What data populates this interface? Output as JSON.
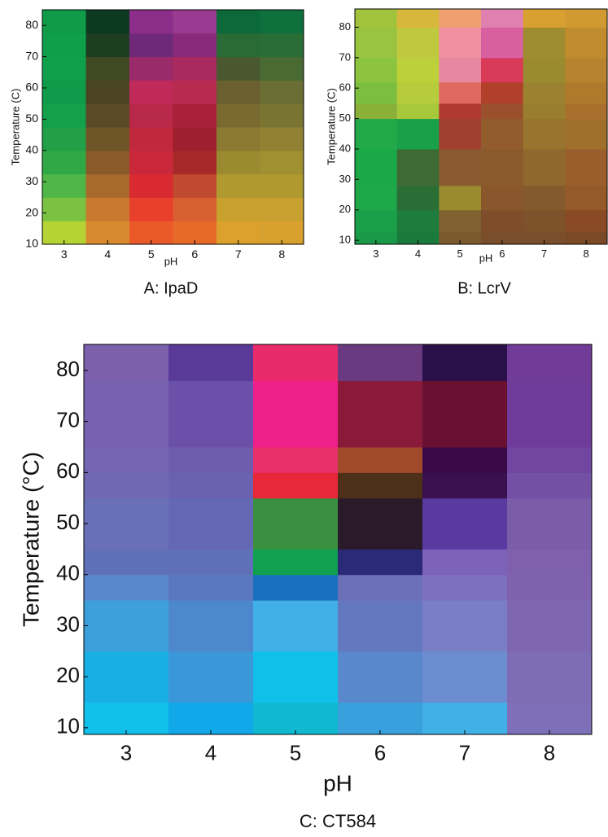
{
  "chart_data": [
    {
      "type": "heatmap",
      "title": "A: IpaD",
      "x_label": "pH",
      "y_label": "Temperature (C)",
      "categories": [
        3,
        4,
        5,
        6,
        7,
        8
      ],
      "ylim": [
        10,
        85
      ],
      "yticks": [
        10,
        20,
        30,
        40,
        50,
        60,
        70,
        80
      ],
      "y_edges": [
        10,
        17.5,
        25,
        32.5,
        40,
        47.5,
        55,
        62.5,
        70,
        77.5,
        85
      ],
      "cells": [
        [
          "#b5d334",
          "#7cc242",
          "#4fb748",
          "#2fa845",
          "#22a048",
          "#12a04a",
          "#0e9b4a",
          "#10a04b",
          "#0f9e4a",
          "#0f9b48"
        ],
        [
          "#d88a2e",
          "#c87a30",
          "#a86a2a",
          "#8a5a28",
          "#6e5528",
          "#5a4a26",
          "#4a4422",
          "#3f4a22",
          "#1e3e22",
          "#0c3a20"
        ],
        [
          "#ea5a28",
          "#e8402a",
          "#d82a30",
          "#c8283a",
          "#c0283e",
          "#b82848",
          "#c02a5a",
          "#9a2a6a",
          "#6e2a78",
          "#8a2e8a"
        ],
        [
          "#e86a28",
          "#d86030",
          "#c04a30",
          "#a8282a",
          "#9e2030",
          "#a8203a",
          "#b82a50",
          "#a82a5e",
          "#8a2a7a",
          "#9a3a90"
        ],
        [
          "#dca02c",
          "#c8a02e",
          "#b09a30",
          "#9a8a30",
          "#8a7a32",
          "#7a6a30",
          "#6a6030",
          "#4a5830",
          "#2a6a34",
          "#0c6a3a"
        ],
        [
          "#d8a02e",
          "#c8a030",
          "#b09a30",
          "#a09032",
          "#908232",
          "#7a7432",
          "#6a6e34",
          "#4a6a34",
          "#2a6e36",
          "#0e703c"
        ]
      ]
    },
    {
      "type": "heatmap",
      "title": "B: LcrV",
      "x_label": "pH",
      "y_label": "Temperature (C)",
      "categories": [
        3,
        4,
        5,
        6,
        7,
        8
      ],
      "ylim": [
        8.7,
        86
      ],
      "yticks": [
        10,
        20,
        30,
        40,
        50,
        60,
        70,
        80
      ],
      "y_edges": [
        8.7,
        13,
        20,
        28,
        40,
        50,
        55,
        62,
        70,
        80,
        86
      ],
      "cells": [
        [
          "#1a9a48",
          "#1aa048",
          "#1ea84a",
          "#1aa848",
          "#22aa48",
          "#8ab03a",
          "#7cbe40",
          "#8cc440",
          "#98c440",
          "#a2c43c"
        ],
        [
          "#1a7a3c",
          "#1e7c3c",
          "#2a6e36",
          "#3e6a34",
          "#1aa048",
          "#a8c83c",
          "#b6cc3c",
          "#bcd03a",
          "#c0c840",
          "#d8b83c"
        ],
        [
          "#7a5a2e",
          "#806230",
          "#9a8a30",
          "#8a5a2e",
          "#a0402e",
          "#b03a30",
          "#e06a60",
          "#e888a0",
          "#f090a0",
          "#f0a070"
        ],
        [
          "#7a4e2a",
          "#7e4e2a",
          "#8a562c",
          "#8a5a2c",
          "#925c2c",
          "#9a502c",
          "#b0402a",
          "#d83a58",
          "#d860a0",
          "#e080b0"
        ],
        [
          "#7a4e2a",
          "#7e522a",
          "#845a2c",
          "#8e682e",
          "#98742e",
          "#9a7e30",
          "#9a8230",
          "#9a8a30",
          "#a08c30",
          "#d8a030"
        ],
        [
          "#7a4a26",
          "#8a4a26",
          "#945a2a",
          "#9a5e2c",
          "#9e702c",
          "#a8702c",
          "#b07a2c",
          "#b6842e",
          "#c08c2e",
          "#d09a30"
        ]
      ]
    },
    {
      "type": "heatmap",
      "title": "C: CT584",
      "x_label": "pH",
      "y_label": "Temperature (°C)",
      "categories": [
        3,
        4,
        5,
        6,
        7,
        8
      ],
      "ylim": [
        8.7,
        85.1
      ],
      "yticks": [
        10,
        20,
        30,
        40,
        50,
        60,
        70,
        80
      ],
      "y_edges": [
        8.7,
        15,
        25,
        35,
        40,
        45,
        55,
        60,
        65,
        78,
        85.1
      ],
      "cells": [
        [
          "#10c0e8",
          "#18b0e4",
          "#3ea0da",
          "#5a88cc",
          "#6070b8",
          "#6a70b8",
          "#7068b0",
          "#7466b2",
          "#7862b0",
          "#7c60ac"
        ],
        [
          "#10a8e8",
          "#3a98d8",
          "#4e88cc",
          "#5a78c0",
          "#6070b8",
          "#6468b4",
          "#6a62b0",
          "#6e5cae",
          "#6a50a8",
          "#5a3a98"
        ],
        [
          "#10b8d0",
          "#10c0ea",
          "#40b0e6",
          "#1a70c0",
          "#10a050",
          "#3a9040",
          "#e8283a",
          "#e8306a",
          "#f0208a",
          "#e82a6a"
        ],
        [
          "#38a0dc",
          "#5a88cc",
          "#6478c0",
          "#6c70b8",
          "#2a2a78",
          "#2a1a2a",
          "#4e3018",
          "#a04a2a",
          "#8a1a3a",
          "#6a3a80"
        ],
        [
          "#40b0e6",
          "#6c8cd0",
          "#7a7ec6",
          "#7e70c0",
          "#7c62b8",
          "#5a3aa0",
          "#3a1050",
          "#3a0a48",
          "#6a1030",
          "#2a1048"
        ],
        [
          "#7e70b8",
          "#7e6cb4",
          "#7e66b0",
          "#7e62ae",
          "#7e60ac",
          "#7a5ca8",
          "#7450a4",
          "#7046a0",
          "#703c9c",
          "#703c98"
        ]
      ]
    }
  ]
}
